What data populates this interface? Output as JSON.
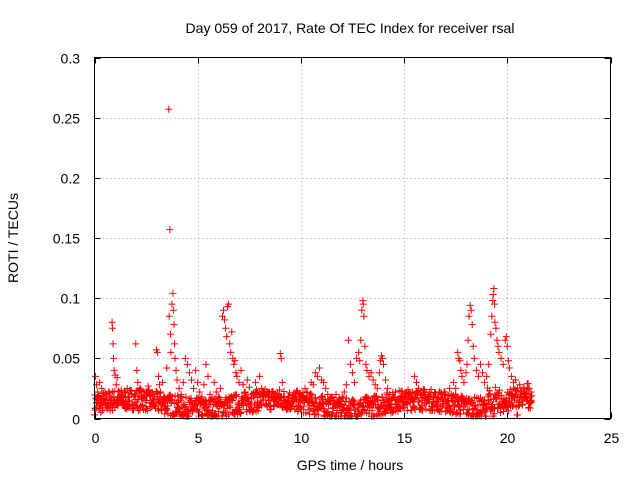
{
  "chart_data": {
    "type": "scatter",
    "title": "Day 059 of 2017, Rate Of TEC Index for receiver rsal",
    "xlabel": "GPS time / hours",
    "ylabel": "ROTI / TECUs",
    "xlim": [
      0,
      25
    ],
    "ylim": [
      0,
      0.3
    ],
    "x_ticks": [
      "0",
      "5",
      "10",
      "15",
      "20",
      "25"
    ],
    "y_ticks": [
      "0",
      "0.05",
      "0.1",
      "0.15",
      "0.2",
      "0.25",
      "0.3"
    ],
    "x_tick_values": [
      0,
      5,
      10,
      15,
      20,
      25
    ],
    "y_tick_values": [
      0,
      0.05,
      0.1,
      0.15,
      0.2,
      0.25,
      0.3
    ],
    "grid": true,
    "marker": "plus",
    "color": "#ff0000",
    "points": [
      [
        0.05,
        0.035
      ],
      [
        0.1,
        0.028
      ],
      [
        0.15,
        0.022
      ],
      [
        0.2,
        0.018
      ],
      [
        0.25,
        0.03
      ],
      [
        0.3,
        0.012
      ],
      [
        0.35,
        0.025
      ],
      [
        0.4,
        0.009
      ],
      [
        0.5,
        0.015
      ],
      [
        0.6,
        0.02
      ],
      [
        0.7,
        0.011
      ],
      [
        0.8,
        0.017
      ],
      [
        0.85,
        0.08
      ],
      [
        0.87,
        0.075
      ],
      [
        0.9,
        0.062
      ],
      [
        0.92,
        0.05
      ],
      [
        0.95,
        0.04
      ],
      [
        1.0,
        0.036
      ],
      [
        1.05,
        0.028
      ],
      [
        1.1,
        0.034
      ],
      [
        1.2,
        0.022
      ],
      [
        1.3,
        0.015
      ],
      [
        1.4,
        0.012
      ],
      [
        1.5,
        0.018
      ],
      [
        1.6,
        0.01
      ],
      [
        1.7,
        0.014
      ],
      [
        1.8,
        0.02
      ],
      [
        2.0,
        0.062
      ],
      [
        2.05,
        0.04
      ],
      [
        2.1,
        0.03
      ],
      [
        2.2,
        0.025
      ],
      [
        2.3,
        0.018
      ],
      [
        2.4,
        0.022
      ],
      [
        2.5,
        0.015
      ],
      [
        2.6,
        0.027
      ],
      [
        2.7,
        0.02
      ],
      [
        2.8,
        0.012
      ],
      [
        3.0,
        0.057
      ],
      [
        3.05,
        0.055
      ],
      [
        3.1,
        0.035
      ],
      [
        3.15,
        0.028
      ],
      [
        3.2,
        0.022
      ],
      [
        3.3,
        0.03
      ],
      [
        3.4,
        0.018
      ],
      [
        3.5,
        0.042
      ],
      [
        3.6,
        0.257
      ],
      [
        3.65,
        0.157
      ],
      [
        3.62,
        0.085
      ],
      [
        3.68,
        0.07
      ],
      [
        3.7,
        0.055
      ],
      [
        3.75,
        0.095
      ],
      [
        3.8,
        0.104
      ],
      [
        3.82,
        0.09
      ],
      [
        3.85,
        0.078
      ],
      [
        3.88,
        0.062
      ],
      [
        3.9,
        0.05
      ],
      [
        3.95,
        0.04
      ],
      [
        4.0,
        0.032
      ],
      [
        4.1,
        0.025
      ],
      [
        4.2,
        0.02
      ],
      [
        4.3,
        0.03
      ],
      [
        4.4,
        0.05
      ],
      [
        4.5,
        0.045
      ],
      [
        4.6,
        0.038
      ],
      [
        4.7,
        0.032
      ],
      [
        4.8,
        0.025
      ],
      [
        4.9,
        0.04
      ],
      [
        5.0,
        0.03
      ],
      [
        5.1,
        0.022
      ],
      [
        5.2,
        0.018
      ],
      [
        5.3,
        0.028
      ],
      [
        5.4,
        0.045
      ],
      [
        5.5,
        0.035
      ],
      [
        5.6,
        0.02
      ],
      [
        5.7,
        0.016
      ],
      [
        5.8,
        0.03
      ],
      [
        5.9,
        0.022
      ],
      [
        6.0,
        0.018
      ],
      [
        6.1,
        0.025
      ],
      [
        6.2,
        0.085
      ],
      [
        6.25,
        0.09
      ],
      [
        6.3,
        0.082
      ],
      [
        6.35,
        0.075
      ],
      [
        6.4,
        0.068
      ],
      [
        6.45,
        0.093
      ],
      [
        6.5,
        0.095
      ],
      [
        6.55,
        0.062
      ],
      [
        6.6,
        0.055
      ],
      [
        6.65,
        0.072
      ],
      [
        6.7,
        0.05
      ],
      [
        6.75,
        0.045
      ],
      [
        6.8,
        0.048
      ],
      [
        6.85,
        0.038
      ],
      [
        6.9,
        0.035
      ],
      [
        7.0,
        0.03
      ],
      [
        7.1,
        0.04
      ],
      [
        7.2,
        0.028
      ],
      [
        7.3,
        0.022
      ],
      [
        7.4,
        0.032
      ],
      [
        7.5,
        0.026
      ],
      [
        7.6,
        0.02
      ],
      [
        7.7,
        0.018
      ],
      [
        7.8,
        0.03
      ],
      [
        7.9,
        0.022
      ],
      [
        8.0,
        0.035
      ],
      [
        8.1,
        0.025
      ],
      [
        8.2,
        0.018
      ],
      [
        8.3,
        0.012
      ],
      [
        8.4,
        0.02
      ],
      [
        8.5,
        0.015
      ],
      [
        8.6,
        0.022
      ],
      [
        8.7,
        0.01
      ],
      [
        8.8,
        0.016
      ],
      [
        8.9,
        0.012
      ],
      [
        9.0,
        0.054
      ],
      [
        9.05,
        0.05
      ],
      [
        9.1,
        0.03
      ],
      [
        9.2,
        0.015
      ],
      [
        9.3,
        0.01
      ],
      [
        9.4,
        0.018
      ],
      [
        9.5,
        0.008
      ],
      [
        9.6,
        0.012
      ],
      [
        9.7,
        0.016
      ],
      [
        9.8,
        0.01
      ],
      [
        9.9,
        0.014
      ],
      [
        10.0,
        0.02
      ],
      [
        10.1,
        0.018
      ],
      [
        10.2,
        0.025
      ],
      [
        10.3,
        0.022
      ],
      [
        10.4,
        0.015
      ],
      [
        10.5,
        0.03
      ],
      [
        10.6,
        0.028
      ],
      [
        10.7,
        0.038
      ],
      [
        10.8,
        0.035
      ],
      [
        10.9,
        0.042
      ],
      [
        11.0,
        0.032
      ],
      [
        11.1,
        0.03
      ],
      [
        11.2,
        0.025
      ],
      [
        11.3,
        0.02
      ],
      [
        11.4,
        0.015
      ],
      [
        11.5,
        0.018
      ],
      [
        11.6,
        0.012
      ],
      [
        11.7,
        0.02
      ],
      [
        11.8,
        0.014
      ],
      [
        11.9,
        0.01
      ],
      [
        12.0,
        0.018
      ],
      [
        12.1,
        0.022
      ],
      [
        12.2,
        0.028
      ],
      [
        12.3,
        0.065
      ],
      [
        12.4,
        0.045
      ],
      [
        12.5,
        0.038
      ],
      [
        12.6,
        0.03
      ],
      [
        12.7,
        0.05
      ],
      [
        12.8,
        0.055
      ],
      [
        12.85,
        0.048
      ],
      [
        12.9,
        0.065
      ],
      [
        12.95,
        0.09
      ],
      [
        13.0,
        0.098
      ],
      [
        13.02,
        0.095
      ],
      [
        13.05,
        0.085
      ],
      [
        13.1,
        0.06
      ],
      [
        13.15,
        0.045
      ],
      [
        13.2,
        0.04
      ],
      [
        13.3,
        0.035
      ],
      [
        13.4,
        0.038
      ],
      [
        13.5,
        0.032
      ],
      [
        13.6,
        0.028
      ],
      [
        13.7,
        0.025
      ],
      [
        13.8,
        0.038
      ],
      [
        13.85,
        0.048
      ],
      [
        13.9,
        0.052
      ],
      [
        13.95,
        0.05
      ],
      [
        14.0,
        0.045
      ],
      [
        14.1,
        0.032
      ],
      [
        14.2,
        0.025
      ],
      [
        14.3,
        0.02
      ],
      [
        14.4,
        0.015
      ],
      [
        14.5,
        0.018
      ],
      [
        14.6,
        0.012
      ],
      [
        14.7,
        0.016
      ],
      [
        14.8,
        0.01
      ],
      [
        14.9,
        0.014
      ],
      [
        15.0,
        0.018
      ],
      [
        15.1,
        0.012
      ],
      [
        15.2,
        0.016
      ],
      [
        15.3,
        0.02
      ],
      [
        15.4,
        0.022
      ],
      [
        15.5,
        0.035
      ],
      [
        15.6,
        0.03
      ],
      [
        15.7,
        0.025
      ],
      [
        15.8,
        0.02
      ],
      [
        15.9,
        0.015
      ],
      [
        16.0,
        0.012
      ],
      [
        16.2,
        0.016
      ],
      [
        16.4,
        0.01
      ],
      [
        16.6,
        0.014
      ],
      [
        16.8,
        0.02
      ],
      [
        17.0,
        0.018
      ],
      [
        17.2,
        0.025
      ],
      [
        17.4,
        0.03
      ],
      [
        17.5,
        0.025
      ],
      [
        17.6,
        0.055
      ],
      [
        17.65,
        0.05
      ],
      [
        17.7,
        0.048
      ],
      [
        17.75,
        0.04
      ],
      [
        17.8,
        0.035
      ],
      [
        17.9,
        0.03
      ],
      [
        18.0,
        0.038
      ],
      [
        18.05,
        0.045
      ],
      [
        18.1,
        0.065
      ],
      [
        18.15,
        0.085
      ],
      [
        18.2,
        0.094
      ],
      [
        18.25,
        0.09
      ],
      [
        18.3,
        0.078
      ],
      [
        18.35,
        0.06
      ],
      [
        18.4,
        0.05
      ],
      [
        18.5,
        0.04
      ],
      [
        18.6,
        0.035
      ],
      [
        18.7,
        0.045
      ],
      [
        18.8,
        0.038
      ],
      [
        18.9,
        0.03
      ],
      [
        19.0,
        0.035
      ],
      [
        19.1,
        0.045
      ],
      [
        19.2,
        0.07
      ],
      [
        19.25,
        0.085
      ],
      [
        19.3,
        0.098
      ],
      [
        19.32,
        0.103
      ],
      [
        19.35,
        0.108
      ],
      [
        19.38,
        0.095
      ],
      [
        19.4,
        0.08
      ],
      [
        19.45,
        0.075
      ],
      [
        19.5,
        0.065
      ],
      [
        19.55,
        0.06
      ],
      [
        19.6,
        0.055
      ],
      [
        19.7,
        0.05
      ],
      [
        19.8,
        0.045
      ],
      [
        19.9,
        0.065
      ],
      [
        19.95,
        0.068
      ],
      [
        20.0,
        0.06
      ],
      [
        20.05,
        0.048
      ],
      [
        20.1,
        0.042
      ],
      [
        20.2,
        0.035
      ],
      [
        20.3,
        0.03
      ],
      [
        20.4,
        0.032
      ],
      [
        20.5,
        0.025
      ],
      [
        20.6,
        0.028
      ],
      [
        20.7,
        0.022
      ],
      [
        20.8,
        0.026
      ],
      [
        20.9,
        0.02
      ],
      [
        21.0,
        0.024
      ],
      [
        21.1,
        0.018
      ],
      [
        21.15,
        0.022
      ]
    ]
  }
}
